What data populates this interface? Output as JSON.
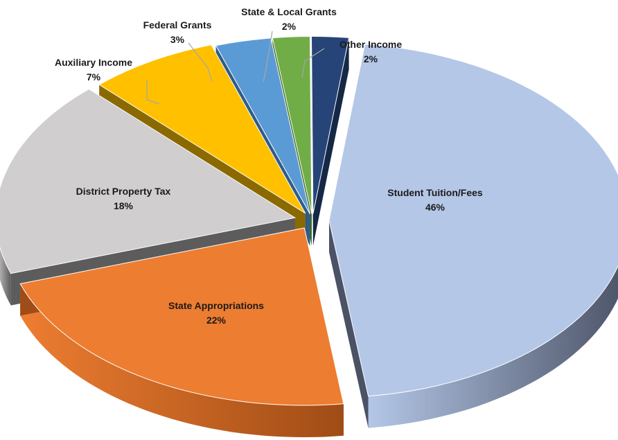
{
  "chart_data": {
    "type": "pie",
    "style": "3d-exploded",
    "legend": "none",
    "units": "%",
    "slices": [
      {
        "name": "Student Tuition/Fees",
        "value": 46,
        "label": "46%",
        "color": "#B4C7E7",
        "side_color": "#4B5266"
      },
      {
        "name": "State Appropriations",
        "value": 22,
        "label": "22%",
        "color": "#ED7D31",
        "side_color": "#A04C16"
      },
      {
        "name": "District Property Tax",
        "value": 18,
        "label": "18%",
        "color": "#D0CECE",
        "side_color": "#5C5C5C"
      },
      {
        "name": "Auxiliary Income",
        "value": 7,
        "label": "7%",
        "color": "#FFC000",
        "side_color": "#8A6A00"
      },
      {
        "name": "Federal Grants",
        "value": 3,
        "label": "3%",
        "color": "#5B9BD5",
        "side_color": "#2F5D8A"
      },
      {
        "name": "State & Local Grants",
        "value": 2,
        "label": "2%",
        "color": "#70AD47",
        "side_color": "#3E6B24"
      },
      {
        "name": "Other Income",
        "value": 2,
        "label": "2%",
        "color": "#264478",
        "side_color": "#152846"
      }
    ]
  }
}
